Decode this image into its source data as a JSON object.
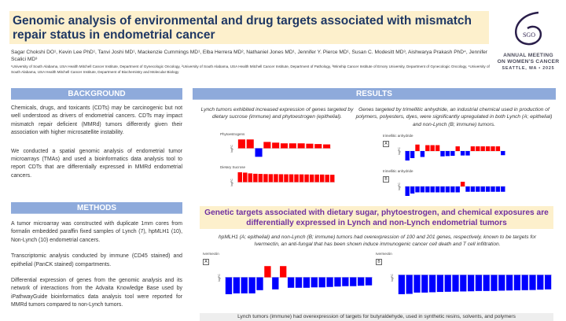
{
  "header": {
    "title": "Genomic analysis of environmental and drug targets associated with mismatch repair status in endometrial cancer",
    "authors": "Sagar Chokshi DO¹, Kevin Lee PhD¹, Tanvi Joshi MD¹, Mackenzie Cummings MD¹, Elba Herrera MD², Nathaniel Jones MD¹, Jennifer Y. Pierce MD¹, Susan C. Modesitt MD³, Aishwarya Prakash PhD⁴, Jennifer Scalici MD³",
    "affiliations": "¹University of South Alabama, USA Health Mitchell Cancer Institute, Department of Gynecologic Oncology, ²University of South Alabama, USA Health Mitchell Cancer Institute, Department of Pathology, ³Winship Cancer Institute of Emory University, Department of Gynecologic Oncology, ⁴University of South Alabama, USA Health Mitchell Cancer Institute, Department of Biochemistry and Molecular Biology"
  },
  "logo": {
    "mark": "SGO",
    "line1": "ANNUAL MEETING",
    "line2": "ON WOMEN'S CANCER",
    "line3": "SEATTLE, WA • 2025"
  },
  "background": {
    "heading": "BACKGROUND",
    "p1": "Chemicals, drugs, and toxicants (CDTs) may be carcinogenic but not well understood as drivers of endometrial cancers. CDTs may impact mismatch repair deficient (MMRd) tumors differently given their association with higher microsatellite instability.",
    "p2": "We conducted a spatial genomic analysis of endometrial tumor microarrays (TMAs) and used a bioinformatics data analysis tool to report CDTs that are differentially expressed in MMRd endometrial cancers."
  },
  "methods": {
    "heading": "METHODS",
    "p1": "A tumor microarray was constructed with duplicate 1mm cores from formalin embedded paraffin fixed samples of Lynch (7), hpMLH1 (10), Non-Lynch (10) endometrial cancers.",
    "p2": "Transcriptomic analysis conducted by immune (CD45 stained) and epithelial (PanCK stained) compartments.",
    "p3": "Differential expression of genes from the genomic analysis and its network of interactions from the Advaita Knowledge Base used by iPathwayGuide bioinformatics data analysis tool were reported for MMRd tumors compared to non-Lynch tumors."
  },
  "results": {
    "heading": "RESULTS",
    "cap1": "Lynch tumors exhibited increased expression of genes targeted by dietary sucrose (immune) and phytoestrogen (epithelial).",
    "cap2": "Genes targeted by trimellitic anhydride, an industrial chemical used in production of polymers, polyesters, dyes, were significantly upregulated in both Lynch (A; epithelial) and non-Lynch (B; immune) tumors.",
    "banner": "Genetic targets associated with dietary sugar, phytoestrogen, and chemical exposures are differentially expressed in Lynch and non-Lynch endometrial tumors",
    "cap3": "hpMLH1 (A; epithelial) and non-Lynch (B; immune) tumors had overexpression of 100 and 201 genes, respectively, known to be targets for Ivermectin, an anti-fungal that has been shown induce immunogenic cancer cell death and T cell infiltration.",
    "bottom": "Lynch tumors (immune) had overexpression of targets for butyraldehyde, used in synthetic resins, solvents, and polymers"
  },
  "colors": {
    "up": "#ff0000",
    "down": "#0000ff",
    "section": "#8eaadb",
    "banner_bg": "#fdf0cc",
    "banner_text": "#7030a0",
    "title": "#1f3864"
  },
  "chart_data": [
    {
      "type": "bar",
      "title": "Phytoestrogens",
      "ylim": [
        -1.5,
        1.5
      ],
      "ylabel": "logFC",
      "values": [
        1.25,
        1.25,
        -1.2,
        0.9,
        0.8,
        0.7,
        0.7,
        0.7,
        0.65,
        0.6,
        0.55
      ]
    },
    {
      "type": "bar",
      "title": "Dietary Sucrose",
      "ylim": [
        -1.5,
        1.5
      ],
      "ylabel": "logFC",
      "values": [
        1.3,
        1.25,
        1.15,
        1.1,
        1.08,
        1.06,
        1.05,
        1.05,
        1.04,
        1.03,
        1.03,
        1.02,
        1.02,
        1.01,
        1.0,
        1.0,
        1.0,
        0.98,
        0.97
      ]
    },
    {
      "type": "bar",
      "title": "trimellitic anhydride",
      "panel": "A",
      "ylim": [
        -2,
        2
      ],
      "ylabel": "logFC",
      "values": [
        -1.6,
        -1.2,
        1.1,
        -1.0,
        1.0,
        1.0,
        1.0,
        -0.9,
        -0.85,
        -0.8,
        0.8,
        -0.75,
        -0.75,
        0.8,
        0.8,
        0.8,
        0.8,
        0.8,
        0.8,
        -0.7
      ]
    },
    {
      "type": "bar",
      "title": "trimellitic anhydride",
      "panel": "B",
      "ylim": [
        -2,
        2
      ],
      "ylabel": "logFC",
      "values": [
        -1.6,
        -1.2,
        -1.0,
        -1.0,
        -1.0,
        -1.0,
        -1.0,
        -1.0,
        -1.0,
        -1.0,
        -1.0,
        0.8,
        -0.9,
        -0.9,
        -0.9,
        -0.9,
        -0.9,
        -0.9,
        -0.9,
        -0.9
      ]
    },
    {
      "type": "bar",
      "title": "Ivermectin",
      "panel": "A",
      "ylim": [
        -2.5,
        2.5
      ],
      "ylabel": "logFC",
      "values": [
        -2.1,
        -2.0,
        -2.0,
        -2.0,
        -1.6,
        1.4,
        -1.5,
        1.4,
        -1.3,
        -1.3,
        -1.3,
        -1.25,
        -1.25,
        -1.2,
        -1.15,
        -1.1,
        -1.1,
        -1.05,
        -1.0
      ]
    },
    {
      "type": "bar",
      "title": "Ivermectin",
      "panel": "B",
      "ylim": [
        -1.4,
        1.1
      ],
      "ylabel": "logFC",
      "values": [
        -1.2,
        -1.18,
        -1.1,
        -1.1,
        -1.08,
        -1.06,
        -1.05,
        -1.04,
        -1.03,
        -1.02,
        -1.0,
        -1.0,
        -1.0,
        -0.98,
        -0.97,
        -0.96,
        -0.95,
        -0.94,
        -0.92,
        -0.9
      ]
    }
  ]
}
